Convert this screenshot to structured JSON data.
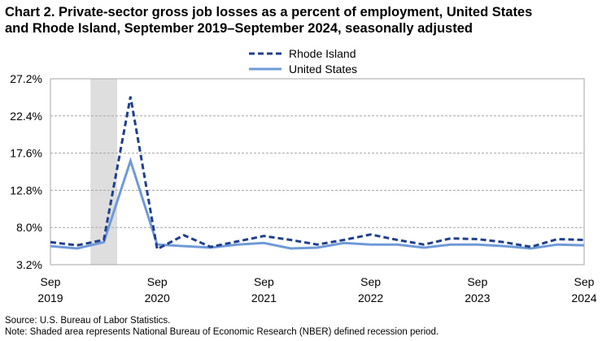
{
  "title": {
    "line1": "Chart 2. Private-sector gross job losses as a percent of employment, United States",
    "line2": "and Rhode Island, September 2019–September 2024, seasonally adjusted"
  },
  "footer": {
    "source": "Source: U.S. Bureau of Labor Statistics.",
    "note": "Note: Shaded area represents National Bureau of Economic Research (NBER) defined  recession period."
  },
  "chart_data": {
    "type": "line",
    "title": "Chart 2. Private-sector gross job losses as a percent of employment, United States and Rhode Island, September 2019–September 2024, seasonally adjusted",
    "xlabel": "",
    "ylabel": "",
    "ylim": [
      3.2,
      27.2
    ],
    "y_ticks": [
      "27.2%",
      "22.4%",
      "17.6%",
      "12.8%",
      "8.0%",
      "3.2%"
    ],
    "y_tick_values": [
      27.2,
      22.4,
      17.6,
      12.8,
      8.0,
      3.2
    ],
    "x_ticks": [
      {
        "quarter": 0,
        "month": "Sep",
        "year": "2019"
      },
      {
        "quarter": 4,
        "month": "Sep",
        "year": "2020"
      },
      {
        "quarter": 8,
        "month": "Sep",
        "year": "2021"
      },
      {
        "quarter": 12,
        "month": "Sep",
        "year": "2022"
      },
      {
        "quarter": 16,
        "month": "Sep",
        "year": "2023"
      },
      {
        "quarter": 20,
        "month": "Sep",
        "year": "2024"
      }
    ],
    "x": [
      "Sep 2019",
      "Dec 2019",
      "Mar 2020",
      "Jun 2020",
      "Sep 2020",
      "Dec 2020",
      "Mar 2021",
      "Jun 2021",
      "Sep 2021",
      "Dec 2021",
      "Mar 2022",
      "Jun 2022",
      "Sep 2022",
      "Dec 2022",
      "Mar 2023",
      "Jun 2023",
      "Sep 2023",
      "Dec 2023",
      "Mar 2024",
      "Jun 2024",
      "Sep 2024"
    ],
    "recession_shading": {
      "from_quarter": 1.5,
      "to_quarter": 2.5
    },
    "grid": true,
    "legend": "top-center",
    "series": [
      {
        "name": "Rhode Island",
        "color": "#1f3f8f",
        "style": "dashed",
        "values": [
          6.1,
          5.7,
          6.4,
          24.9,
          5.2,
          7.0,
          5.5,
          6.2,
          6.9,
          6.4,
          5.8,
          6.4,
          7.1,
          6.4,
          5.8,
          6.6,
          6.5,
          6.1,
          5.5,
          6.5,
          6.4
        ]
      },
      {
        "name": "United States",
        "color": "#6f9ad8",
        "style": "solid",
        "values": [
          5.6,
          5.3,
          6.1,
          16.6,
          5.8,
          5.6,
          5.4,
          5.8,
          6.0,
          5.3,
          5.4,
          6.0,
          5.8,
          5.8,
          5.4,
          5.8,
          5.8,
          5.6,
          5.3,
          5.8,
          5.7
        ]
      }
    ]
  }
}
